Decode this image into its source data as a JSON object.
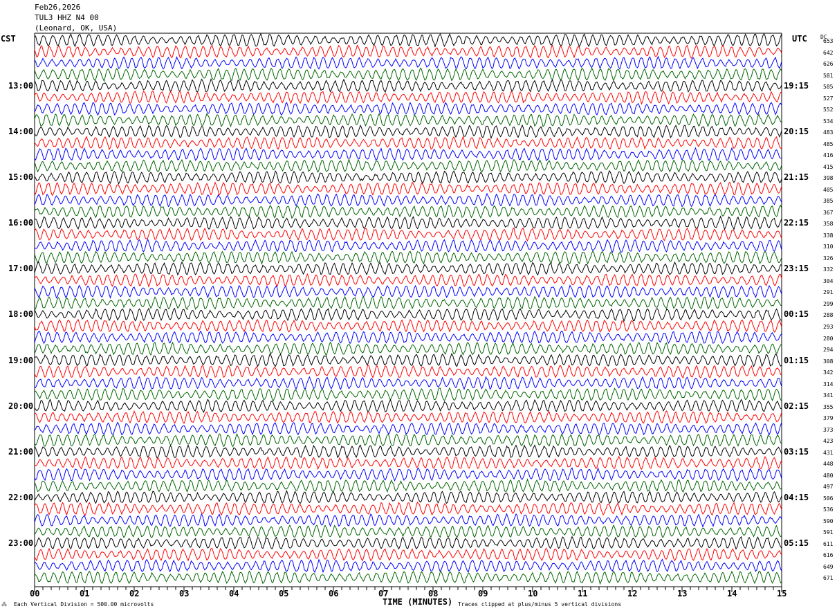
{
  "header": {
    "date": "Feb26,2026",
    "station": "TUL3 HHZ N4 00",
    "location": "(Leonard, OK, USA)"
  },
  "left_tz": "CST",
  "right_tz": "UTC",
  "dc_label": "DC",
  "footer": {
    "scale": "Each Vertical Division =  500.00 microvolts",
    "xlabel": "TIME (MINUTES)",
    "clip_note": "Traces clipped at plus/minus 5 vertical divisions"
  },
  "chart_data": {
    "type": "line",
    "xlabel": "TIME (MINUTES)",
    "xlim": [
      0,
      15
    ],
    "x_ticks": [
      "00",
      "01",
      "02",
      "03",
      "04",
      "05",
      "06",
      "07",
      "08",
      "09",
      "10",
      "11",
      "12",
      "13",
      "14",
      "15"
    ],
    "trace_colors": [
      "#000000",
      "#ff0000",
      "#0000ff",
      "#006400"
    ],
    "left_hour_labels": [
      "13:00",
      "14:00",
      "15:00",
      "16:00",
      "17:00",
      "18:00",
      "19:00",
      "20:00",
      "21:00",
      "22:00",
      "23:00"
    ],
    "right_hour_labels": [
      "19:15",
      "20:15",
      "21:15",
      "22:15",
      "23:15",
      "00:15",
      "01:15",
      "02:15",
      "03:15",
      "04:15",
      "05:15"
    ],
    "dc_offsets": [
      "653",
      "642",
      "626",
      "581",
      "585",
      "527",
      "552",
      "534",
      "483",
      "485",
      "416",
      "415",
      "398",
      "405",
      "385",
      "367",
      "358",
      "338",
      "310",
      "326",
      "332",
      "304",
      "291",
      "299",
      "288",
      "293",
      "280",
      "294",
      "308",
      "342",
      "314",
      "341",
      "355",
      "379",
      "373",
      "423",
      "431",
      "448",
      "480",
      "497",
      "506",
      "536",
      "590",
      "591",
      "611",
      "616",
      "649",
      "671"
    ]
  }
}
